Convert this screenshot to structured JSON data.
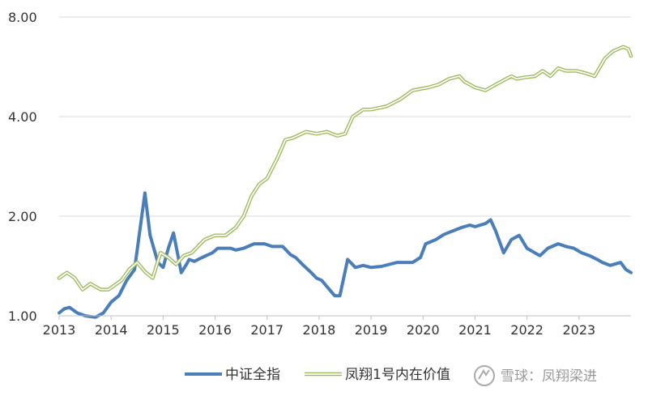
{
  "chart_data": {
    "type": "line",
    "title": "",
    "xlabel": "",
    "ylabel": "",
    "y_scale": "log",
    "ylim": [
      1.0,
      8.0
    ],
    "y_ticks": [
      {
        "value": 1,
        "label": "1.00"
      },
      {
        "value": 2,
        "label": "2.00"
      },
      {
        "value": 4,
        "label": "4.00"
      },
      {
        "value": 8,
        "label": "8.00"
      }
    ],
    "x_range": [
      2013,
      2024
    ],
    "x_ticks": [
      "2013",
      "2014",
      "2015",
      "2016",
      "2017",
      "2018",
      "2019",
      "2020",
      "2021",
      "2022",
      "2023"
    ],
    "grid": "horizontal",
    "legend_position": "bottom",
    "series": [
      {
        "name": "中证全指",
        "color": "#4a7ebb",
        "x": [
          2013.0,
          2013.1,
          2013.2,
          2013.35,
          2013.5,
          2013.7,
          2013.85,
          2014.0,
          2014.15,
          2014.3,
          2014.45,
          2014.55,
          2014.65,
          2014.75,
          2014.9,
          2015.0,
          2015.1,
          2015.2,
          2015.35,
          2015.45,
          2015.5,
          2015.6,
          2015.75,
          2015.95,
          2016.05,
          2016.2,
          2016.3,
          2016.4,
          2016.55,
          2016.75,
          2016.95,
          2017.1,
          2017.3,
          2017.45,
          2017.55,
          2017.7,
          2017.85,
          2017.95,
          2018.05,
          2018.2,
          2018.3,
          2018.4,
          2018.55,
          2018.7,
          2018.85,
          2019.0,
          2019.2,
          2019.35,
          2019.5,
          2019.65,
          2019.8,
          2019.95,
          2020.05,
          2020.25,
          2020.4,
          2020.55,
          2020.75,
          2020.9,
          2021.0,
          2021.2,
          2021.3,
          2021.4,
          2021.55,
          2021.7,
          2021.85,
          2022.0,
          2022.15,
          2022.25,
          2022.4,
          2022.6,
          2022.75,
          2022.9,
          2023.05,
          2023.2,
          2023.35,
          2023.45,
          2023.6,
          2023.8,
          2023.9,
          2024.0
        ],
        "values": [
          1.02,
          1.05,
          1.06,
          1.02,
          1.0,
          0.99,
          1.02,
          1.1,
          1.15,
          1.28,
          1.38,
          1.8,
          2.35,
          1.75,
          1.45,
          1.4,
          1.6,
          1.78,
          1.35,
          1.43,
          1.48,
          1.46,
          1.5,
          1.55,
          1.6,
          1.6,
          1.6,
          1.58,
          1.6,
          1.65,
          1.65,
          1.62,
          1.62,
          1.53,
          1.5,
          1.42,
          1.35,
          1.3,
          1.28,
          1.2,
          1.15,
          1.15,
          1.48,
          1.4,
          1.42,
          1.4,
          1.41,
          1.43,
          1.45,
          1.45,
          1.45,
          1.5,
          1.65,
          1.7,
          1.76,
          1.8,
          1.85,
          1.88,
          1.86,
          1.9,
          1.95,
          1.8,
          1.55,
          1.7,
          1.75,
          1.6,
          1.55,
          1.52,
          1.6,
          1.65,
          1.62,
          1.6,
          1.55,
          1.52,
          1.48,
          1.45,
          1.42,
          1.45,
          1.38,
          1.35
        ]
      },
      {
        "name": "凤翔1号内在价值",
        "color": "#9bbb59",
        "x": [
          2013.0,
          2013.15,
          2013.3,
          2013.45,
          2013.6,
          2013.8,
          2013.95,
          2014.2,
          2014.35,
          2014.5,
          2014.65,
          2014.8,
          2014.95,
          2015.1,
          2015.25,
          2015.4,
          2015.55,
          2015.8,
          2016.0,
          2016.2,
          2016.4,
          2016.55,
          2016.7,
          2016.85,
          2017.0,
          2017.2,
          2017.35,
          2017.5,
          2017.75,
          2017.95,
          2018.15,
          2018.35,
          2018.5,
          2018.65,
          2018.85,
          2019.0,
          2019.3,
          2019.55,
          2019.8,
          2020.1,
          2020.3,
          2020.5,
          2020.7,
          2020.8,
          2021.0,
          2021.2,
          2021.4,
          2021.6,
          2021.7,
          2021.8,
          2021.95,
          2022.15,
          2022.3,
          2022.45,
          2022.6,
          2022.75,
          2022.95,
          2023.15,
          2023.3,
          2023.5,
          2023.65,
          2023.75,
          2023.85,
          2023.95,
          2024.0
        ],
        "values": [
          1.3,
          1.35,
          1.3,
          1.2,
          1.25,
          1.2,
          1.2,
          1.28,
          1.38,
          1.45,
          1.36,
          1.3,
          1.55,
          1.5,
          1.43,
          1.52,
          1.55,
          1.7,
          1.75,
          1.75,
          1.85,
          2.0,
          2.3,
          2.5,
          2.6,
          3.0,
          3.4,
          3.45,
          3.6,
          3.55,
          3.6,
          3.5,
          3.55,
          4.0,
          4.2,
          4.2,
          4.3,
          4.5,
          4.8,
          4.9,
          5.0,
          5.2,
          5.3,
          5.1,
          4.9,
          4.8,
          5.0,
          5.2,
          5.3,
          5.2,
          5.25,
          5.3,
          5.5,
          5.3,
          5.6,
          5.5,
          5.5,
          5.4,
          5.3,
          6.0,
          6.3,
          6.4,
          6.5,
          6.4,
          6.1
        ]
      }
    ]
  },
  "watermark": {
    "logo": "snowball-logo",
    "text": "雪球：凤翔梁进"
  }
}
